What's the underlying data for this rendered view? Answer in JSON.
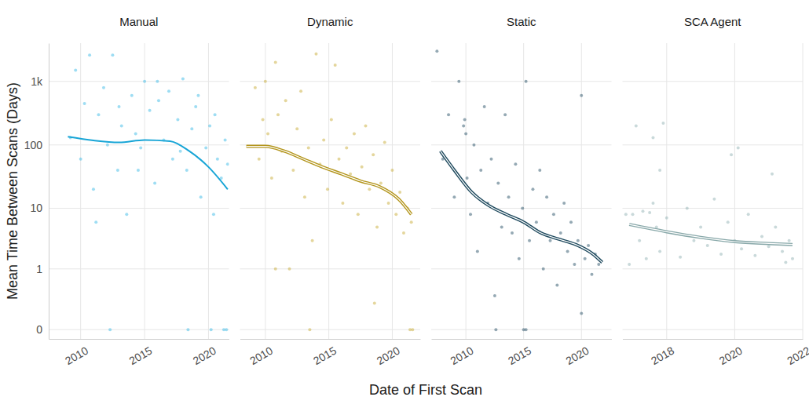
{
  "chart_data": {
    "type": "scatter",
    "x_label": "Date of First Scan",
    "y_label": "Mean Time Between Scans (Days)",
    "log": "y",
    "grid": true,
    "ylim": [
      -0.05,
      4000
    ],
    "yticks": [
      0,
      1,
      10,
      100,
      {
        "value": 1000,
        "label": "1k"
      }
    ],
    "facets": [
      {
        "title": "Manual",
        "xlim": [
          2007.5,
          2021.6
        ],
        "xticks": [
          2010,
          2015,
          2020
        ],
        "series": [
          {
            "type": "scatter",
            "marker": "circle",
            "color": "#3dbbe8",
            "x": [
              2009.2,
              2009.6,
              2010.0,
              2010.3,
              2010.7,
              2011.0,
              2011.4,
              2011.8,
              2012.1,
              2012.5,
              2012.9,
              2013.2,
              2013.6,
              2014.0,
              2014.3,
              2014.7,
              2015.0,
              2015.4,
              2015.8,
              2016.1,
              2016.5,
              2016.9,
              2017.2,
              2017.6,
              2018.0,
              2018.3,
              2018.7,
              2019.0,
              2019.4,
              2019.8,
              2020.1,
              2020.4,
              2020.7,
              2021.0,
              2021.3,
              2021.5,
              2012.3,
              2018.4,
              2020.2,
              2021.2,
              2021.4,
              2011.2,
              2013.0,
              2016.0,
              2019.2,
              2020.5,
              2014.5,
              2017.8
            ],
            "values": [
              130,
              1500,
              60,
              450,
              2600,
              20,
              300,
              800,
              100,
              2600,
              40,
              200,
              8,
              600,
              150,
              90,
              1000,
              350,
              25,
              500,
              120,
              700,
              60,
              250,
              1100,
              40,
              180,
              400,
              15,
              90,
              200,
              8,
              60,
              30,
              120,
              50,
              0,
              0,
              0,
              0,
              0,
              6,
              400,
              1000,
              600,
              300,
              40,
              80
            ]
          },
          {
            "type": "line",
            "line_style": "solid",
            "color": "#18a5d6",
            "x": [
              2009.0,
              2011.0,
              2013.0,
              2015.0,
              2017.0,
              2018.5,
              2020.0,
              2021.5
            ],
            "values": [
              135,
              118,
              110,
              120,
              115,
              80,
              45,
              20
            ]
          }
        ]
      },
      {
        "title": "Dynamic",
        "xlim": [
          2008.0,
          2022.2
        ],
        "xticks": [
          2010,
          2015,
          2020
        ],
        "series": [
          {
            "type": "scatter",
            "marker": "circle",
            "color": "#c9ad3a",
            "x": [
              2009.2,
              2009.5,
              2009.8,
              2010.0,
              2010.2,
              2010.5,
              2010.8,
              2011.0,
              2011.3,
              2011.6,
              2011.9,
              2012.2,
              2012.5,
              2012.8,
              2013.1,
              2013.4,
              2013.7,
              2014.0,
              2014.3,
              2014.6,
              2014.9,
              2015.2,
              2015.5,
              2015.8,
              2016.1,
              2016.4,
              2016.7,
              2017.0,
              2017.3,
              2017.6,
              2017.9,
              2018.2,
              2018.5,
              2018.8,
              2019.1,
              2019.4,
              2019.7,
              2020.0,
              2020.3,
              2020.6,
              2020.9,
              2021.2,
              2021.5,
              2013.5,
              2021.4,
              2021.6,
              2010.8,
              2018.6
            ],
            "values": [
              800,
              60,
              250,
              1000,
              150,
              30,
              2000,
              300,
              80,
              500,
              1,
              40,
              180,
              700,
              15,
              90,
              3,
              2700,
              50,
              120,
              20,
              250,
              1800,
              60,
              12,
              90,
              35,
              150,
              8,
              45,
              200,
              20,
              70,
              5,
              25,
              110,
              12,
              40,
              8,
              18,
              4,
              10,
              6,
              0,
              0,
              0,
              1,
              0.2
            ]
          },
          {
            "type": "line",
            "line_style": "double",
            "color": "#b3951c",
            "x": [
              2008.5,
              2010.0,
              2011.5,
              2013.0,
              2014.5,
              2016.0,
              2017.5,
              2019.0,
              2020.5,
              2021.5
            ],
            "values": [
              95,
              95,
              80,
              60,
              45,
              35,
              27,
              22,
              14,
              8
            ]
          }
        ]
      },
      {
        "title": "Static",
        "xlim": [
          2007.0,
          2022.6
        ],
        "xticks": [
          2010,
          2015,
          2020
        ],
        "series": [
          {
            "type": "scatter",
            "marker": "circle",
            "color": "#2b5469",
            "x": [
              2007.5,
              2008.0,
              2008.5,
              2009.0,
              2009.4,
              2009.8,
              2010.1,
              2010.4,
              2010.7,
              2011.0,
              2011.3,
              2011.6,
              2011.9,
              2012.2,
              2012.5,
              2012.8,
              2013.1,
              2013.4,
              2013.7,
              2014.0,
              2014.3,
              2014.6,
              2014.9,
              2015.2,
              2015.5,
              2015.8,
              2016.1,
              2016.4,
              2016.7,
              2017.0,
              2017.3,
              2017.6,
              2017.9,
              2018.2,
              2018.5,
              2018.8,
              2019.1,
              2019.4,
              2019.7,
              2020.0,
              2020.3,
              2020.6,
              2020.9,
              2021.2,
              2021.5,
              2012.6,
              2015.0,
              2015.2,
              2020.0,
              2010.0,
              2009.9
            ],
            "values": [
              3000,
              60,
              300,
              15,
              1000,
              200,
              30,
              8,
              100,
              2,
              40,
              400,
              12,
              60,
              0.3,
              25,
              5,
              300,
              15,
              4,
              50,
              1.5,
              10,
              1000,
              3,
              20,
              6,
              40,
              1,
              15,
              3,
              8,
              0.5,
              4,
              12,
              2,
              6,
              1.2,
              3,
              600,
              1.5,
              2.5,
              0.8,
              1.8,
              1.2,
              0,
              0,
              0,
              0.1,
              150,
              250
            ]
          },
          {
            "type": "line",
            "line_style": "double",
            "color": "#1f4a5e",
            "x": [
              2007.8,
              2009.0,
              2010.5,
              2012.0,
              2013.5,
              2015.0,
              2016.5,
              2018.0,
              2019.5,
              2021.0,
              2021.8
            ],
            "values": [
              80,
              40,
              18,
              11,
              8,
              6,
              4,
              3.2,
              2.6,
              1.8,
              1.3
            ]
          }
        ]
      },
      {
        "title": "SCA Agent",
        "xlim": [
          2016.7,
          2022.0
        ],
        "xticks": [
          2018,
          2020,
          2022
        ],
        "series": [
          {
            "type": "scatter",
            "marker": "circle",
            "color": "#93b4b5",
            "x": [
              2016.8,
              2016.9,
              2017.0,
              2017.1,
              2017.2,
              2017.3,
              2017.4,
              2017.5,
              2017.6,
              2017.7,
              2017.8,
              2017.9,
              2018.0,
              2018.2,
              2018.4,
              2018.6,
              2018.8,
              2019.0,
              2019.2,
              2019.4,
              2019.6,
              2019.8,
              2020.0,
              2020.2,
              2020.4,
              2020.6,
              2020.8,
              2021.0,
              2021.2,
              2021.4,
              2021.6,
              2021.7,
              2017.6,
              2017.8,
              2019.9,
              2020.1,
              2021.1,
              2021.5
            ],
            "values": [
              8,
              1.2,
              8,
              200,
              3,
              9,
              1.5,
              8.5,
              12,
              5,
              2,
              220,
              7,
              4,
              1.6,
              10,
              3,
              5,
              2.5,
              14,
              1.8,
              6,
              3,
              2.2,
              8,
              1.7,
              3.5,
              2.4,
              5,
              2,
              3,
              1.5,
              130,
              40,
              70,
              90,
              35,
              1.3
            ]
          },
          {
            "type": "line",
            "line_style": "double",
            "color": "#88a8a9",
            "x": [
              2016.9,
              2018.0,
              2019.0,
              2020.0,
              2021.0,
              2021.7
            ],
            "values": [
              5.5,
              4.2,
              3.4,
              2.9,
              2.7,
              2.6
            ]
          }
        ]
      }
    ]
  }
}
